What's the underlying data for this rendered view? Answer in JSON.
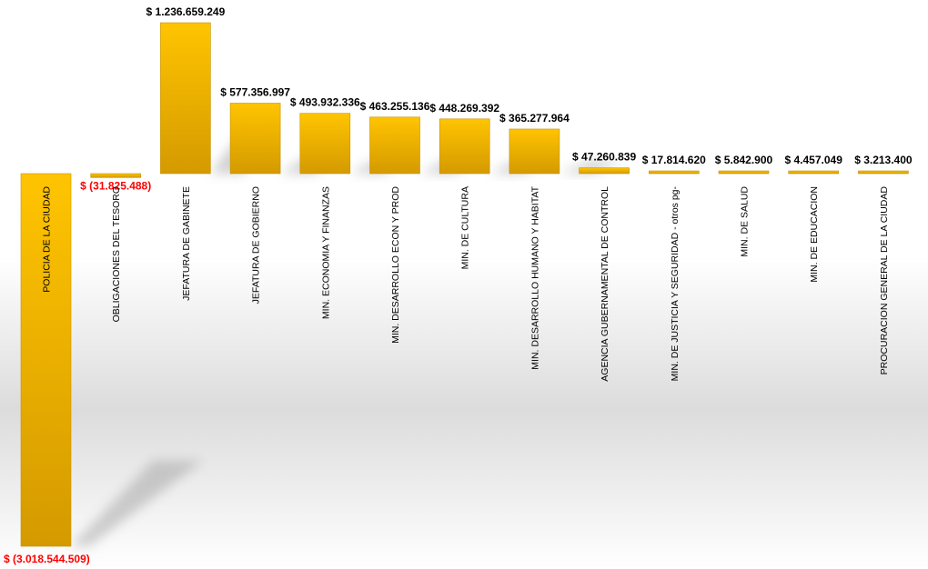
{
  "chart_data": {
    "type": "bar",
    "title": "",
    "xlabel": "",
    "ylabel": "",
    "ylim": [
      -3018544509,
      1236659249
    ],
    "grid": false,
    "legend": "none",
    "colors": {
      "bar_top": "#FFC400",
      "bar_bottom": "#D49A00",
      "bar_edge": "#C99200",
      "positive_label": "#000000",
      "negative_label": "#FF0000",
      "shadow": "#9a9a9a"
    },
    "categories": [
      "POLICIA DE LA CIUDAD",
      "OBLIGACIONES DEL TESORO",
      "JEFATURA DE GABINETE",
      "JEFATURA DE GOBIERNO",
      "MIN. ECONOMIA Y FINANZAS",
      "MIN. DESARROLLO ECON Y PROD",
      "MIN. DE CULTURA",
      "MIN. DESARROLLO HUMANO Y HABITAT",
      "AGENCIA GUBERNAMENTAL DE CONTROL",
      "MIN. DE JUSTICIA Y SEGURIDAD - otros pg-",
      "MIN. DE SALUD",
      "MIN. DE EDUCACION",
      "PROCURACION GENERAL DE LA CIUDAD"
    ],
    "values": [
      -3018544509,
      -31825488,
      1236659249,
      577356997,
      493932336,
      463255136,
      448269392,
      365277964,
      47260839,
      17814620,
      5842900,
      4457049,
      3213400
    ],
    "data_labels": [
      "$ (3.018.544.509)",
      "$ (31.825.488)",
      "$ 1.236.659.249",
      "$ 577.356.997",
      "$ 493.932.336",
      "$ 463.255.136",
      "$ 448.269.392",
      "$ 365.277.964",
      "$ 47.260.839",
      "$ 17.814.620",
      "$ 5.842.900",
      "$ 4.457.049",
      "$ 3.213.400"
    ]
  }
}
